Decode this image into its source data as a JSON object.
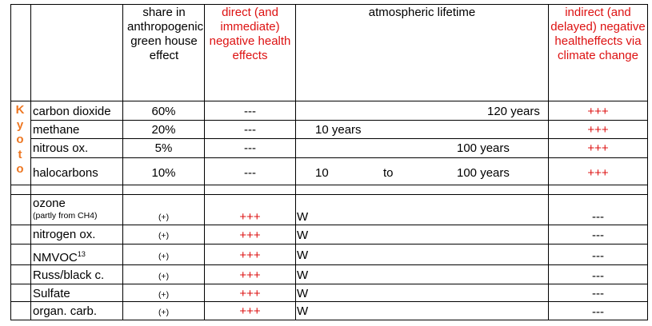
{
  "headers": {
    "share": "share in anthropogenic green house effect",
    "direct": "direct (and immediate) negative health effects",
    "lifetime": "atmospheric lifetime",
    "indirect": "indirect (and delayed) negative healtheffects via climate change"
  },
  "kyoto_label": [
    "K",
    "y",
    "o",
    "t",
    "o"
  ],
  "kyoto_rows": [
    {
      "name": "carbon dioxide",
      "share": "60%",
      "direct": "---",
      "lifetime": "120 years",
      "indirect": "+++"
    },
    {
      "name": "methane",
      "share": "20%",
      "direct": "---",
      "lifetime": "10 years",
      "indirect": "+++"
    },
    {
      "name": "nitrous ox.",
      "share": "5%",
      "direct": "---",
      "lifetime": "100 years",
      "indirect": "+++"
    },
    {
      "name": "halocarbons",
      "share": "10%",
      "direct": "---",
      "lifetime_from": "10",
      "lifetime_to_word": "to",
      "lifetime_to": "100 years",
      "indirect": "+++"
    }
  ],
  "other_rows": [
    {
      "name": "ozone",
      "note": "(partly from CH4)",
      "share": "(+)",
      "direct": "+++",
      "lifetime": "W",
      "indirect": "---"
    },
    {
      "name": "nitrogen ox.",
      "share": "(+)",
      "direct": "+++",
      "lifetime": "W",
      "indirect": "---"
    },
    {
      "name": "NMVOC",
      "sup": "13",
      "share": "(+)",
      "direct": "+++",
      "lifetime": "W",
      "indirect": "---"
    },
    {
      "name": "Russ/black c.",
      "share": "(+)",
      "direct": "+++",
      "lifetime": "W",
      "indirect": "---"
    },
    {
      "name": "Sulfate",
      "share": "(+)",
      "direct": "+++",
      "lifetime": "W",
      "indirect": "---"
    },
    {
      "name": "organ. carb.",
      "share": "(+)",
      "direct": "+++",
      "lifetime": "W",
      "indirect": "---"
    }
  ],
  "colors": {
    "red": "#dd1111",
    "orange": "#ee7722"
  }
}
